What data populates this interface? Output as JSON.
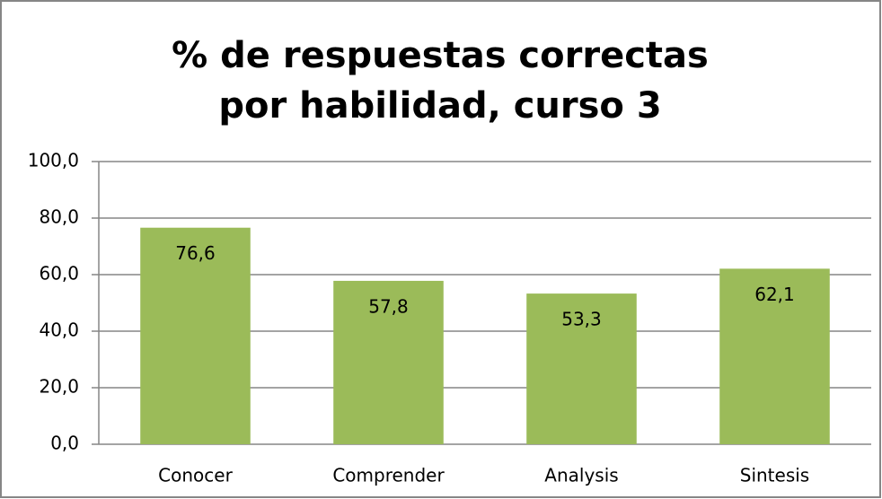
{
  "chart_data": {
    "type": "bar",
    "title": "% de respuestas correctas por habilidad, curso 3",
    "categories": [
      "Conocer",
      "Comprender",
      "Analysis",
      "Sintesis"
    ],
    "values": [
      76.6,
      57.8,
      53.3,
      62.1
    ],
    "value_labels": [
      "76,6",
      "57,8",
      "53,3",
      "62,1"
    ],
    "color": "#9bbb59",
    "ylim": [
      0,
      100
    ],
    "yticks": [
      {
        "value": 0,
        "label": "0,0"
      },
      {
        "value": 20,
        "label": "20,0"
      },
      {
        "value": 40,
        "label": "40,0"
      },
      {
        "value": 60,
        "label": "60,0"
      },
      {
        "value": 80,
        "label": "80,0"
      },
      {
        "value": 100,
        "label": "100,0"
      }
    ],
    "grid": true
  }
}
